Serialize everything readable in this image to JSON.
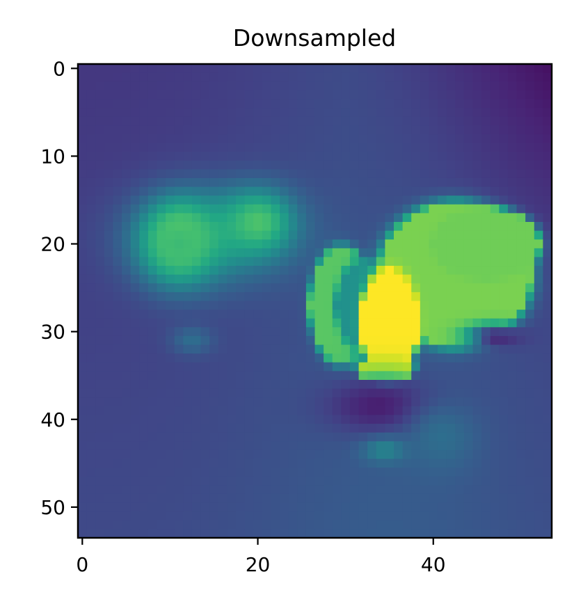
{
  "chart_data": {
    "type": "heatmap",
    "title": "Downsampled",
    "xlabel": "",
    "ylabel": "",
    "grid_size": [
      54,
      54
    ],
    "xlim": [
      -0.5,
      53.5
    ],
    "ylim": [
      53.5,
      -0.5
    ],
    "x_ticks": [
      0,
      20,
      40
    ],
    "y_ticks": [
      0,
      10,
      20,
      30,
      40,
      50
    ],
    "x_tick_labels": [
      "0",
      "20",
      "40"
    ],
    "y_tick_labels": [
      "0",
      "10",
      "20",
      "30",
      "40",
      "50"
    ],
    "colormap": "viridis",
    "value_range": [
      0,
      1
    ],
    "grid": false,
    "field": {
      "background": {
        "base": 0.16,
        "row_gradient": 0.06,
        "right_top_darkening": 0.14
      },
      "blobs": [
        {
          "name": "left-halo",
          "cx": 15,
          "cy": 19,
          "rx": 11,
          "ry": 6.5,
          "value": 0.52,
          "sharp": false
        },
        {
          "name": "left-mid-bar",
          "cx": 20,
          "cy": 17.5,
          "rx": 5,
          "ry": 4.5,
          "value": 0.72,
          "sharp": false
        },
        {
          "name": "left-bright-core",
          "cx": 11,
          "cy": 19.5,
          "rx": 3.6,
          "ry": 4.2,
          "value": 0.95,
          "sharp": false
        },
        {
          "name": "left-core-ring",
          "cx": 11,
          "cy": 20,
          "rx": 6,
          "ry": 6,
          "value": 0.68,
          "sharp": false
        },
        {
          "name": "left-lower-patch",
          "cx": 12.5,
          "cy": 31,
          "rx": 3,
          "ry": 2,
          "value": 0.36,
          "sharp": false
        },
        {
          "name": "center-left-patch",
          "cx": 29.5,
          "cy": 27,
          "rx": 3.5,
          "ry": 6.5,
          "value": 0.74,
          "sharp": true
        },
        {
          "name": "center-mid-patch",
          "cx": 32,
          "cy": 27,
          "rx": 3,
          "ry": 5,
          "value": 0.5,
          "sharp": true
        },
        {
          "name": "right-big-patch",
          "cx": 42.5,
          "cy": 23.5,
          "rx": 8.5,
          "ry": 8,
          "value": 0.8,
          "sharp": true
        },
        {
          "name": "right-upper-lobe",
          "cx": 46,
          "cy": 20,
          "rx": 6,
          "ry": 4,
          "value": 0.78,
          "sharp": true
        },
        {
          "name": "bright-core",
          "cx": 35,
          "cy": 29,
          "rx": 3.3,
          "ry": 6,
          "value": 1.0,
          "sharp": true
        },
        {
          "name": "bright-bottom",
          "cx": 34.5,
          "cy": 34.2,
          "rx": 3.2,
          "ry": 1.5,
          "value": 0.98,
          "sharp": true
        },
        {
          "name": "dark-v-basin",
          "cx": 34,
          "cy": 38.5,
          "rx": 8,
          "ry": 4,
          "value": 0.08,
          "sharp": false
        },
        {
          "name": "dark-right-notch",
          "cx": 47,
          "cy": 30.5,
          "rx": 4,
          "ry": 1.6,
          "value": 0.08,
          "sharp": false
        },
        {
          "name": "lower-teal-patch",
          "cx": 34.5,
          "cy": 43.5,
          "rx": 3.2,
          "ry": 1.8,
          "value": 0.46,
          "sharp": false
        },
        {
          "name": "lower-teal-wing",
          "cx": 41,
          "cy": 42,
          "rx": 5,
          "ry": 5,
          "value": 0.36,
          "sharp": false
        }
      ]
    }
  }
}
